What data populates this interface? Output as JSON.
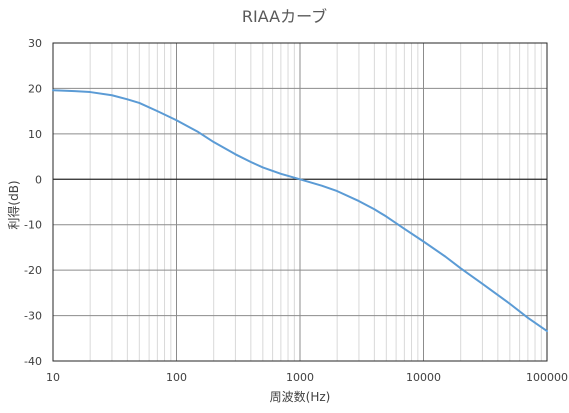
{
  "chart_data": {
    "type": "line",
    "title": "RIAAカーブ",
    "xlabel": "周波数(Hz)",
    "ylabel": "利得(dB)",
    "x_scale": "log",
    "xlim": [
      10,
      100000
    ],
    "ylim": [
      -40,
      30
    ],
    "x_ticks": [
      10,
      100,
      1000,
      10000,
      100000
    ],
    "x_tick_labels": [
      "10",
      "100",
      "1000",
      "10000",
      "100000"
    ],
    "y_ticks": [
      30,
      20,
      10,
      0,
      -10,
      -20,
      -30,
      -40
    ],
    "y_tick_labels": [
      "30",
      "20",
      "10",
      "0",
      "-10",
      "-20",
      "-30",
      "-40"
    ],
    "grid": true,
    "legend": "none",
    "line_color": "#5B9BD5",
    "series": [
      {
        "x": [
          10,
          15,
          20,
          30,
          40,
          50,
          70,
          100,
          150,
          200,
          300,
          400,
          500,
          700,
          1000,
          1500,
          2000,
          3000,
          4000,
          5000,
          7000,
          10000,
          15000,
          20000,
          30000,
          50000,
          70000,
          100000
        ],
        "values": [
          19.6,
          19.4,
          19.2,
          18.5,
          17.6,
          16.8,
          15.0,
          13.0,
          10.4,
          8.2,
          5.5,
          3.8,
          2.6,
          1.2,
          0.0,
          -1.4,
          -2.6,
          -4.8,
          -6.6,
          -8.2,
          -10.9,
          -13.7,
          -17.0,
          -19.6,
          -23.0,
          -27.4,
          -30.5,
          -33.4
        ]
      }
    ]
  }
}
